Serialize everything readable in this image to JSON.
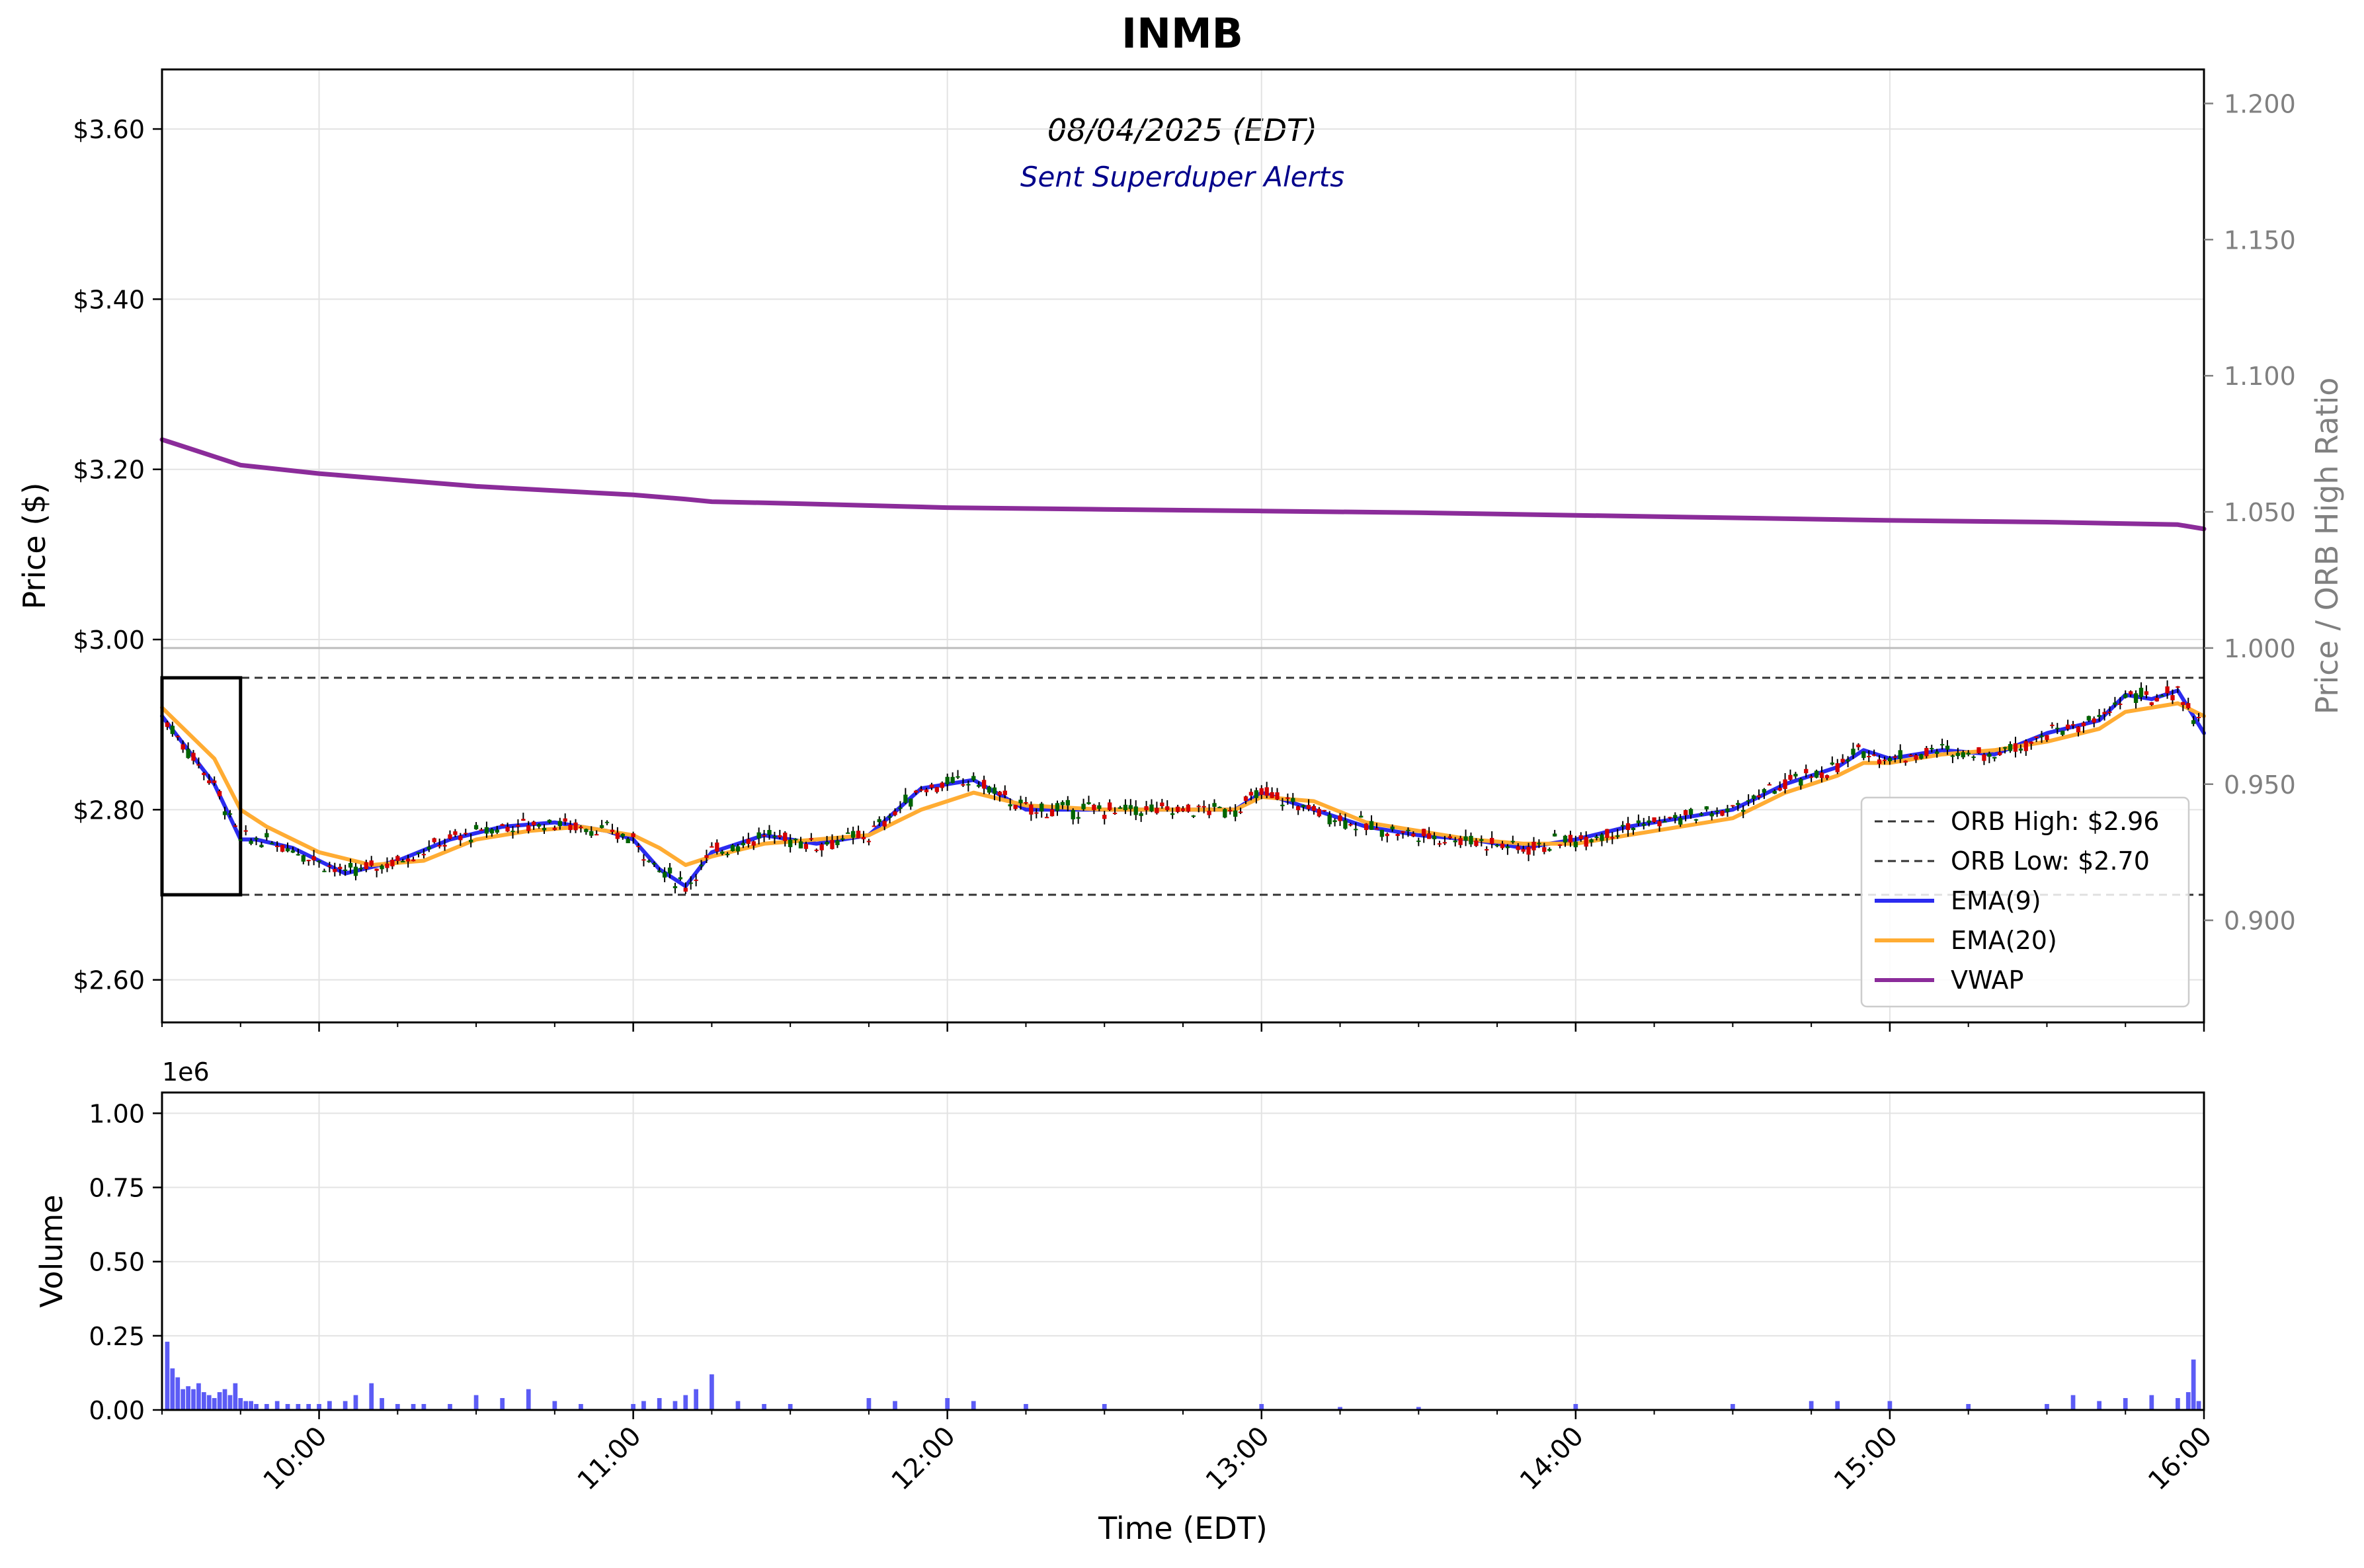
{
  "chart_data": [
    {
      "type": "candlestick",
      "title": "INMB",
      "subtitle": "08/04/2025 (EDT)",
      "annotation": "Sent Superduper Alerts",
      "ylabel": "Price ($)",
      "y2label": "Price / ORB High Ratio",
      "ylim": [
        2.55,
        3.67
      ],
      "y2lim": [
        0.8625,
        1.2125
      ],
      "yticks": [
        2.6,
        2.8,
        3.0,
        3.2,
        3.4,
        3.6
      ],
      "ytick_labels": [
        "$2.60",
        "$2.80",
        "$3.00",
        "$3.20",
        "$3.40",
        "$3.60"
      ],
      "y2ticks": [
        0.9,
        0.95,
        1.0,
        1.05,
        1.1,
        1.15,
        1.2
      ],
      "y2tick_labels": [
        "0.900",
        "0.950",
        "1.000",
        "1.050",
        "1.100",
        "1.150",
        "1.200"
      ],
      "xlim": [
        "09:30",
        "16:00"
      ],
      "xticks": [
        "10:00",
        "11:00",
        "12:00",
        "13:00",
        "14:00",
        "15:00",
        "16:00"
      ],
      "grid": true,
      "legend_position": "lower-right",
      "orb_window": {
        "start": "09:30",
        "end": "09:45",
        "high": 2.955,
        "low": 2.7
      },
      "ratio_reference_line": 1.0,
      "series": [
        {
          "name": "ORB High: $2.96",
          "style": "dashed",
          "color": "#333333",
          "constant": 2.955
        },
        {
          "name": "ORB Low: $2.70",
          "style": "dashed",
          "color": "#333333",
          "constant": 2.7
        },
        {
          "name": "EMA(9)",
          "color": "#2b2bf0",
          "x": [
            "09:30",
            "09:40",
            "09:45",
            "09:48",
            "09:55",
            "10:05",
            "10:15",
            "10:25",
            "10:35",
            "10:45",
            "10:55",
            "11:00",
            "11:05",
            "11:10",
            "11:15",
            "11:25",
            "11:35",
            "11:45",
            "11:55",
            "12:05",
            "12:15",
            "12:30",
            "12:45",
            "12:55",
            "13:00",
            "13:10",
            "13:20",
            "13:30",
            "13:40",
            "13:50",
            "14:00",
            "14:10",
            "14:20",
            "14:30",
            "14:40",
            "14:50",
            "14:55",
            "15:00",
            "15:10",
            "15:20",
            "15:30",
            "15:40",
            "15:45",
            "15:50",
            "15:55",
            "16:00"
          ],
          "values": [
            2.91,
            2.83,
            2.765,
            2.765,
            2.755,
            2.725,
            2.74,
            2.765,
            2.78,
            2.785,
            2.775,
            2.765,
            2.73,
            2.71,
            2.75,
            2.77,
            2.76,
            2.77,
            2.825,
            2.835,
            2.8,
            2.8,
            2.8,
            2.8,
            2.82,
            2.8,
            2.78,
            2.77,
            2.765,
            2.755,
            2.765,
            2.78,
            2.79,
            2.8,
            2.83,
            2.85,
            2.87,
            2.86,
            2.87,
            2.865,
            2.89,
            2.905,
            2.935,
            2.93,
            2.94,
            2.89
          ]
        },
        {
          "name": "EMA(20)",
          "color": "#ffac33",
          "x": [
            "09:30",
            "09:40",
            "09:45",
            "09:50",
            "10:00",
            "10:10",
            "10:20",
            "10:30",
            "10:40",
            "10:50",
            "11:00",
            "11:05",
            "11:10",
            "11:15",
            "11:25",
            "11:35",
            "11:45",
            "11:55",
            "12:05",
            "12:15",
            "12:30",
            "12:45",
            "12:55",
            "13:00",
            "13:10",
            "13:20",
            "13:30",
            "13:40",
            "13:50",
            "14:00",
            "14:10",
            "14:20",
            "14:30",
            "14:40",
            "14:50",
            "14:55",
            "15:00",
            "15:10",
            "15:20",
            "15:30",
            "15:40",
            "15:45",
            "15:50",
            "15:55",
            "16:00"
          ],
          "values": [
            2.92,
            2.86,
            2.8,
            2.78,
            2.75,
            2.735,
            2.74,
            2.765,
            2.775,
            2.78,
            2.77,
            2.755,
            2.735,
            2.745,
            2.76,
            2.765,
            2.77,
            2.8,
            2.82,
            2.805,
            2.8,
            2.8,
            2.8,
            2.815,
            2.81,
            2.785,
            2.775,
            2.765,
            2.76,
            2.76,
            2.77,
            2.78,
            2.79,
            2.82,
            2.84,
            2.855,
            2.855,
            2.865,
            2.87,
            2.88,
            2.895,
            2.915,
            2.92,
            2.925,
            2.91
          ]
        },
        {
          "name": "VWAP",
          "color": "#8b2c9a",
          "x": [
            "09:30",
            "09:35",
            "09:40",
            "09:45",
            "10:00",
            "10:10",
            "10:20",
            "10:30",
            "10:45",
            "11:00",
            "11:10",
            "11:15",
            "11:30",
            "12:00",
            "12:30",
            "13:00",
            "13:30",
            "14:00",
            "14:30",
            "15:00",
            "15:30",
            "15:55",
            "16:00"
          ],
          "values": [
            3.235,
            3.225,
            3.215,
            3.205,
            3.195,
            3.19,
            3.185,
            3.18,
            3.175,
            3.17,
            3.165,
            3.162,
            3.16,
            3.155,
            3.153,
            3.151,
            3.149,
            3.146,
            3.143,
            3.14,
            3.138,
            3.135,
            3.13
          ]
        }
      ]
    },
    {
      "type": "bar",
      "ylabel": "Volume",
      "xlabel": "Time (EDT)",
      "scale_label": "1e6",
      "ylim": [
        0,
        1.07
      ],
      "yticks": [
        0,
        0.25,
        0.5,
        0.75,
        1.0
      ],
      "ytick_labels": [
        "0.00",
        "0.25",
        "0.50",
        "0.75",
        "1.00"
      ],
      "xlim": [
        "09:30",
        "16:00"
      ],
      "xticks": [
        "10:00",
        "11:00",
        "12:00",
        "13:00",
        "14:00",
        "15:00",
        "16:00"
      ],
      "grid": true,
      "bar_color": "#5c5cf5",
      "x": [
        "09:31",
        "09:32",
        "09:33",
        "09:34",
        "09:35",
        "09:36",
        "09:37",
        "09:38",
        "09:39",
        "09:40",
        "09:41",
        "09:42",
        "09:43",
        "09:44",
        "09:45",
        "09:46",
        "09:47",
        "09:48",
        "09:50",
        "09:52",
        "09:54",
        "09:56",
        "09:58",
        "10:00",
        "10:02",
        "10:05",
        "10:07",
        "10:10",
        "10:12",
        "10:15",
        "10:18",
        "10:20",
        "10:25",
        "10:30",
        "10:35",
        "10:40",
        "10:45",
        "10:50",
        "11:00",
        "11:02",
        "11:05",
        "11:08",
        "11:10",
        "11:12",
        "11:15",
        "11:20",
        "11:25",
        "11:30",
        "11:45",
        "11:50",
        "12:00",
        "12:05",
        "12:15",
        "12:30",
        "13:00",
        "13:15",
        "13:30",
        "14:00",
        "14:30",
        "14:45",
        "14:50",
        "15:00",
        "15:15",
        "15:30",
        "15:35",
        "15:40",
        "15:45",
        "15:50",
        "15:55",
        "15:57",
        "15:58",
        "15:59"
      ],
      "values": [
        0.23,
        0.14,
        0.11,
        0.07,
        0.08,
        0.07,
        0.09,
        0.06,
        0.05,
        0.04,
        0.06,
        0.07,
        0.05,
        0.09,
        0.04,
        0.03,
        0.03,
        0.02,
        0.02,
        0.03,
        0.02,
        0.02,
        0.02,
        0.02,
        0.03,
        0.03,
        0.05,
        0.09,
        0.04,
        0.02,
        0.02,
        0.02,
        0.02,
        0.05,
        0.04,
        0.07,
        0.03,
        0.02,
        0.02,
        0.03,
        0.04,
        0.03,
        0.05,
        0.07,
        0.12,
        0.03,
        0.02,
        0.02,
        0.04,
        0.03,
        0.04,
        0.03,
        0.02,
        0.02,
        0.02,
        0.01,
        0.01,
        0.02,
        0.02,
        0.03,
        0.03,
        0.03,
        0.02,
        0.02,
        0.05,
        0.03,
        0.04,
        0.05,
        0.04,
        0.06,
        0.17,
        0.03
      ]
    }
  ]
}
